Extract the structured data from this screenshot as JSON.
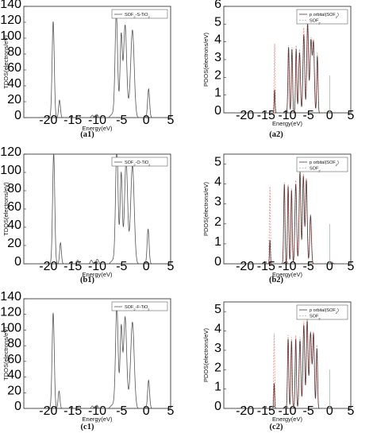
{
  "chart_data": [
    {
      "id": "a1",
      "type": "line",
      "panel_label": "(a1)",
      "xlabel": "Energy(eV)",
      "ylabel": "TDOS(electrons/eV)",
      "xlim": [
        -25,
        5
      ],
      "ylim": [
        0,
        140
      ],
      "xticks": [
        -20,
        -15,
        -10,
        -5,
        0,
        5
      ],
      "yticks": [
        0,
        20,
        40,
        60,
        80,
        100,
        120,
        140
      ],
      "legend_position": "top-right",
      "series": [
        {
          "name": "SOF₂-S-TiO₂",
          "color": "#555555",
          "peaks": [
            [
              -19.0,
              121,
              0.22
            ],
            [
              -17.7,
              22,
              0.18
            ],
            [
              -13.8,
              3,
              0.2
            ],
            [
              -11.0,
              3,
              0.2
            ],
            [
              -10.1,
              4,
              0.25
            ],
            [
              -6.1,
              123,
              0.25
            ],
            [
              -5.1,
              92,
              0.22
            ],
            [
              -4.3,
              105,
              0.3
            ],
            [
              -2.8,
              104,
              0.35
            ],
            [
              0.5,
              36,
              0.2
            ]
          ],
          "bands": [
            [
              -7.7,
              -1.8,
              12
            ]
          ]
        }
      ]
    },
    {
      "id": "a2",
      "type": "line",
      "panel_label": "(a2)",
      "xlabel": "Energy(eV)",
      "ylabel": "PDOS(electrons/eV)",
      "xlim": [
        -25,
        5
      ],
      "ylim": [
        0,
        6
      ],
      "xticks": [
        -20,
        -15,
        -10,
        -5,
        0,
        5
      ],
      "yticks": [
        0,
        1,
        2,
        3,
        4,
        5,
        6
      ],
      "fermi_level": 0,
      "fermi_value": 2.1,
      "legend_position": "top-right",
      "series": [
        {
          "name": "p orbital(SOF₂)",
          "color": "#5a3535",
          "peaks": [
            [
              -13.0,
              1.3,
              0.1
            ],
            [
              -9.7,
              3.7,
              0.15
            ],
            [
              -8.9,
              3.6,
              0.15
            ],
            [
              -7.9,
              3.6,
              0.15
            ],
            [
              -7.1,
              3.4,
              0.2
            ],
            [
              -6.1,
              4.4,
              0.2
            ],
            [
              -5.2,
              5.0,
              0.2
            ],
            [
              -4.4,
              4.1,
              0.25
            ],
            [
              -3.8,
              3.8,
              0.2
            ],
            [
              -2.9,
              3.2,
              0.15
            ]
          ]
        },
        {
          "name": "SOF₂",
          "color": "#e89a9a",
          "dashed": true,
          "peaks": [
            [
              -13.0,
              3.9,
              0.12
            ],
            [
              -9.7,
              3.8,
              0.15
            ],
            [
              -8.9,
              3.7,
              0.15
            ],
            [
              -7.9,
              3.8,
              0.15
            ],
            [
              -7.1,
              3.6,
              0.2
            ],
            [
              -6.1,
              4.8,
              0.2
            ],
            [
              -5.2,
              5.4,
              0.2
            ],
            [
              -4.4,
              4.2,
              0.25
            ],
            [
              -3.8,
              3.9,
              0.2
            ],
            [
              -2.9,
              3.4,
              0.15
            ]
          ]
        }
      ]
    },
    {
      "id": "b1",
      "type": "line",
      "panel_label": "(b1)",
      "xlabel": "Energy(eV)",
      "ylabel": "TDOS(electrons/eV)",
      "xlim": [
        -25,
        5
      ],
      "ylim": [
        0,
        120
      ],
      "xticks": [
        -20,
        -15,
        -10,
        -5,
        0,
        5
      ],
      "yticks": [
        0,
        20,
        40,
        60,
        80,
        100,
        120
      ],
      "legend_position": "top-right",
      "series": [
        {
          "name": "SOF₂-O-TiO₂",
          "color": "#555555",
          "peaks": [
            [
              -18.9,
              121,
              0.22
            ],
            [
              -17.5,
              23,
              0.18
            ],
            [
              -14.0,
              4,
              0.2
            ],
            [
              -11.2,
              4,
              0.2
            ],
            [
              -10.0,
              5,
              0.25
            ],
            [
              -6.0,
              121,
              0.25
            ],
            [
              -5.1,
              90,
              0.22
            ],
            [
              -4.1,
              104,
              0.3
            ],
            [
              -2.8,
              103,
              0.35
            ],
            [
              0.4,
              38,
              0.2
            ]
          ],
          "bands": [
            [
              -7.6,
              -1.8,
              10
            ]
          ]
        }
      ]
    },
    {
      "id": "b2",
      "type": "line",
      "panel_label": "(b2)",
      "xlabel": "Energy(eV)",
      "ylabel": "PDOS(electrons/eV)",
      "xlim": [
        -25,
        5
      ],
      "ylim": [
        0,
        5.5
      ],
      "xticks": [
        -20,
        -15,
        -10,
        -5,
        0,
        5
      ],
      "yticks": [
        0,
        1,
        2,
        3,
        4,
        5
      ],
      "fermi_level": 0,
      "fermi_value": 2.0,
      "legend_position": "top-right",
      "series": [
        {
          "name": "p orbital(SOF₂)",
          "color": "#5a3535",
          "peaks": [
            [
              -14.1,
              1.2,
              0.1
            ],
            [
              -10.7,
              4.0,
              0.15
            ],
            [
              -9.8,
              3.9,
              0.15
            ],
            [
              -9.0,
              3.7,
              0.15
            ],
            [
              -8.0,
              4.0,
              0.2
            ],
            [
              -7.0,
              4.6,
              0.2
            ],
            [
              -6.2,
              4.4,
              0.2
            ],
            [
              -5.5,
              4.2,
              0.2
            ],
            [
              -4.5,
              2.4,
              0.2
            ],
            [
              0.6,
              0.05,
              0.2
            ]
          ]
        },
        {
          "name": "SOF₂",
          "color": "#e89a9a",
          "dashed": true,
          "peaks": [
            [
              -14.1,
              3.9,
              0.12
            ],
            [
              -10.7,
              4.1,
              0.15
            ],
            [
              -9.8,
              4.0,
              0.15
            ],
            [
              -9.0,
              3.8,
              0.15
            ],
            [
              -8.0,
              4.2,
              0.2
            ],
            [
              -7.0,
              4.8,
              0.2
            ],
            [
              -6.2,
              4.5,
              0.2
            ],
            [
              -5.5,
              4.3,
              0.2
            ],
            [
              -4.5,
              2.5,
              0.2
            ],
            [
              0.6,
              0.08,
              0.2
            ]
          ]
        }
      ]
    },
    {
      "id": "c1",
      "type": "line",
      "panel_label": "(c1)",
      "xlabel": "Energy(eV)",
      "ylabel": "TDOS(electrons/eV)",
      "xlim": [
        -25,
        5
      ],
      "ylim": [
        0,
        140
      ],
      "xticks": [
        -20,
        -15,
        -10,
        -5,
        0,
        5
      ],
      "yticks": [
        0,
        20,
        40,
        60,
        80,
        100,
        120,
        140
      ],
      "legend_position": "top-right",
      "series": [
        {
          "name": "SOF₂-F-TiO₂",
          "color": "#555555",
          "peaks": [
            [
              -19.0,
              122,
              0.22
            ],
            [
              -17.8,
              22,
              0.18
            ],
            [
              -13.7,
              3,
              0.2
            ],
            [
              -11.0,
              3,
              0.2
            ],
            [
              -10.1,
              4,
              0.25
            ],
            [
              -6.0,
              122,
              0.25
            ],
            [
              -5.1,
              92,
              0.22
            ],
            [
              -4.3,
              105,
              0.3
            ],
            [
              -2.8,
              104,
              0.35
            ],
            [
              0.5,
              36,
              0.2
            ]
          ],
          "bands": [
            [
              -7.7,
              -1.8,
              12
            ]
          ]
        }
      ]
    },
    {
      "id": "c2",
      "type": "line",
      "panel_label": "(c2)",
      "xlabel": "Energy(eV)",
      "ylabel": "PDOS(electrons/eV)",
      "xlim": [
        -25,
        5
      ],
      "ylim": [
        0,
        5.5
      ],
      "xticks": [
        -20,
        -15,
        -10,
        -5,
        0,
        5
      ],
      "yticks": [
        0,
        1,
        2,
        3,
        4,
        5
      ],
      "fermi_level": 0,
      "fermi_value": 2.0,
      "legend_position": "top-right",
      "series": [
        {
          "name": "p orbital(SOF₂)",
          "color": "#5a3535",
          "peaks": [
            [
              -13.1,
              1.3,
              0.1
            ],
            [
              -9.8,
              3.6,
              0.15
            ],
            [
              -9.0,
              3.5,
              0.15
            ],
            [
              -8.0,
              3.6,
              0.15
            ],
            [
              -7.0,
              3.5,
              0.2
            ],
            [
              -6.1,
              4.3,
              0.2
            ],
            [
              -5.3,
              4.5,
              0.2
            ],
            [
              -4.5,
              3.9,
              0.25
            ],
            [
              -3.8,
              3.8,
              0.2
            ],
            [
              -3.0,
              3.1,
              0.15
            ]
          ]
        },
        {
          "name": "SOF₂",
          "color": "#e89a9a",
          "dashed": true,
          "peaks": [
            [
              -13.1,
              3.9,
              0.12
            ],
            [
              -9.8,
              3.8,
              0.15
            ],
            [
              -9.0,
              3.7,
              0.15
            ],
            [
              -8.0,
              3.8,
              0.15
            ],
            [
              -7.0,
              3.7,
              0.2
            ],
            [
              -6.1,
              4.5,
              0.2
            ],
            [
              -5.3,
              4.7,
              0.2
            ],
            [
              -4.5,
              4.0,
              0.25
            ],
            [
              -3.8,
              3.9,
              0.2
            ],
            [
              -3.0,
              3.3,
              0.15
            ]
          ]
        }
      ]
    }
  ]
}
